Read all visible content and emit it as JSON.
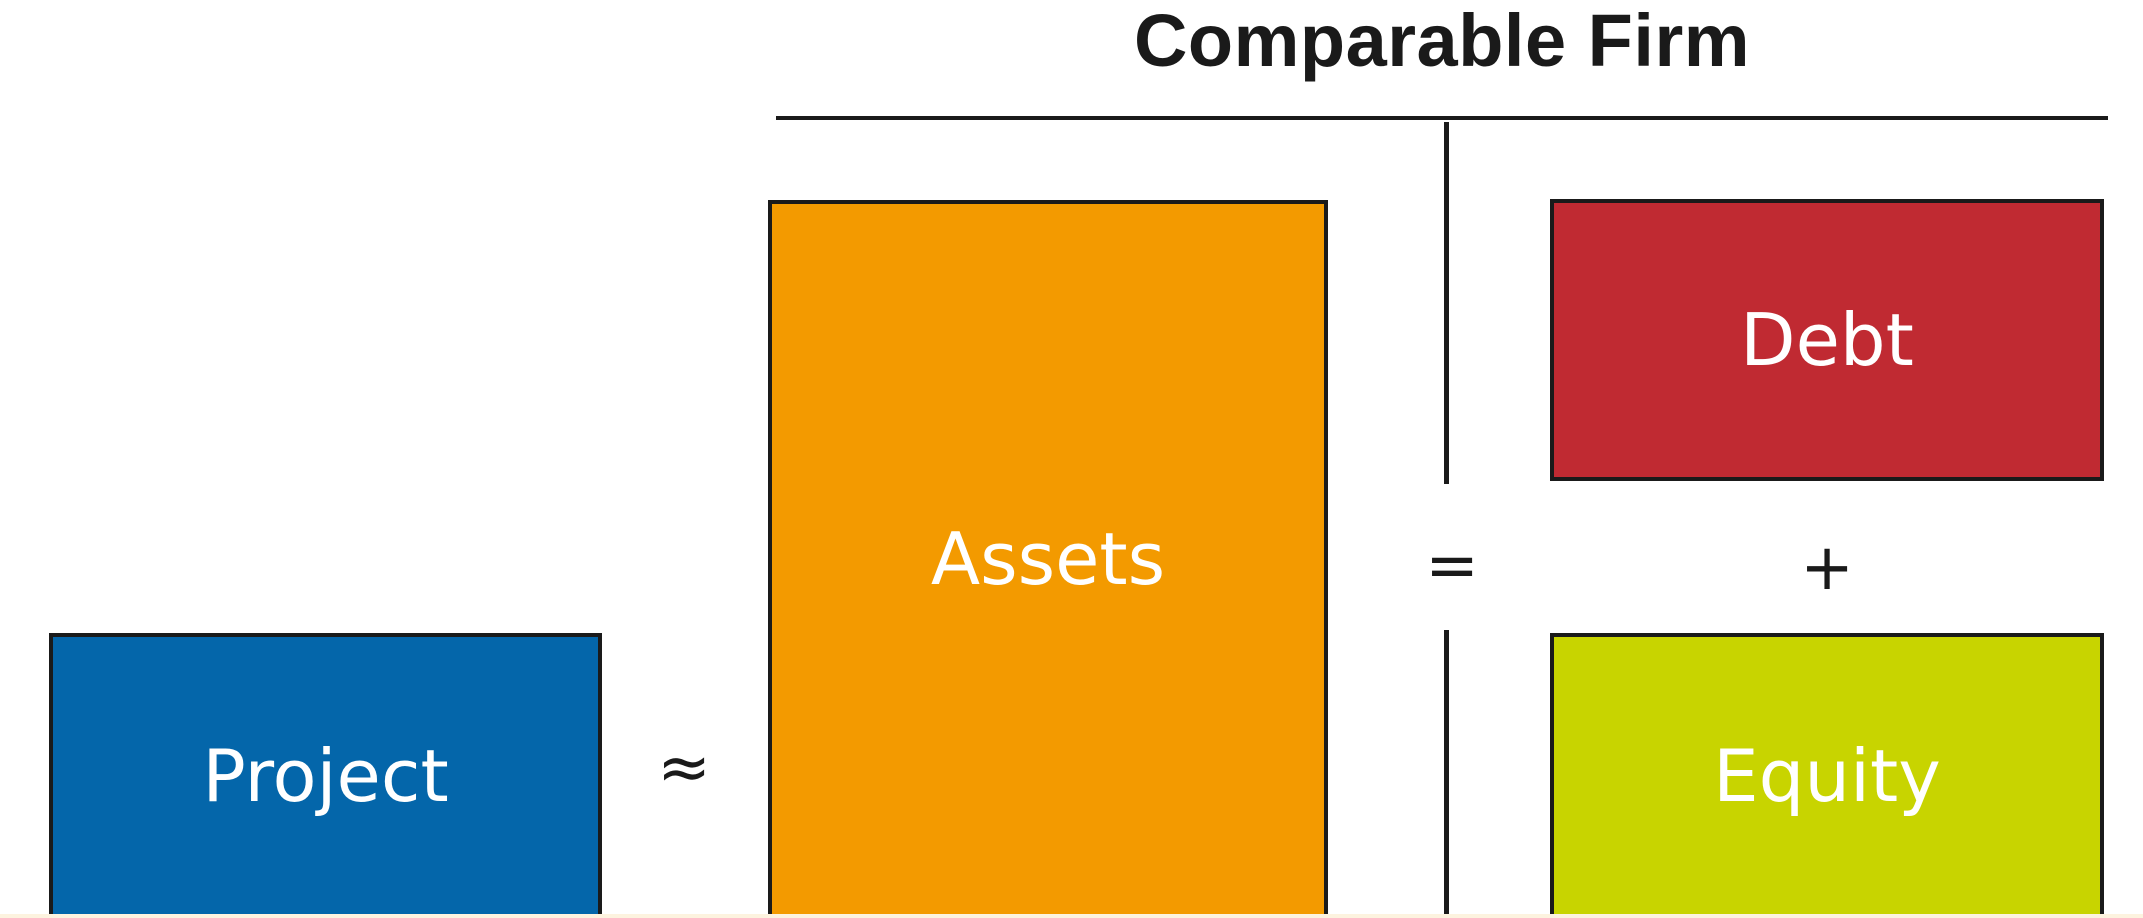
{
  "diagram": {
    "title": "Comparable Firm",
    "boxes": {
      "project": "Project",
      "assets": "Assets",
      "debt": "Debt",
      "equity": "Equity"
    },
    "symbols": {
      "approx": "≈",
      "equals": "=",
      "plus": "+"
    },
    "colors": {
      "project": "#0466aa",
      "assets": "#f39a00",
      "debt": "#c02a32",
      "equity": "#c8d400",
      "border": "#1a1a1a"
    }
  }
}
